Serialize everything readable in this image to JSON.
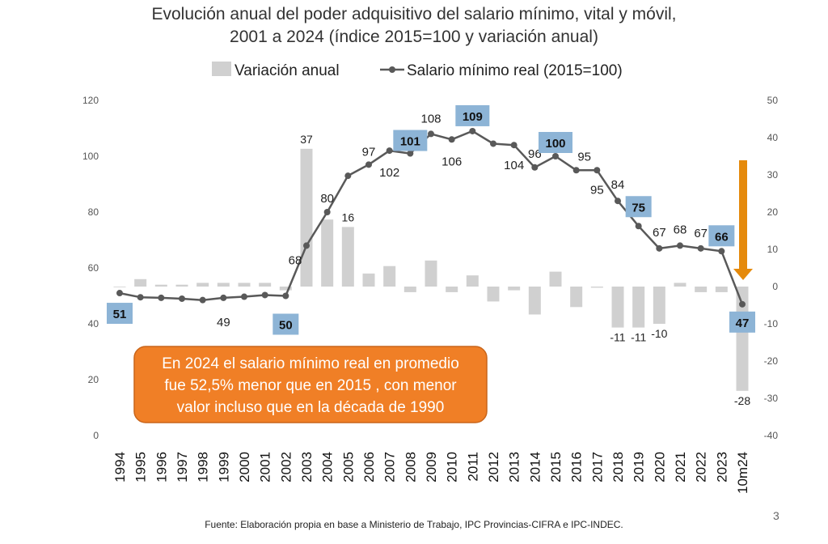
{
  "title_line1": "Evolución anual del poder adquisitivo del salario mínimo, vital y móvil,",
  "title_line2": "2001 a 2024 (índice 2015=100 y variación anual)",
  "source": "Fuente: Elaboración propia en base a Ministerio de Trabajo, IPC Provincias-CIFRA e IPC-INDEC.",
  "page_number": "3",
  "callout": {
    "lines": [
      "En 2024 el salario mínimo real en promedio",
      "fue 52,5% menor que en 2015 , con menor",
      "valor incluso que en la década de 1990"
    ],
    "color": "#F07F26"
  },
  "colors": {
    "bars": "#D0D0D0",
    "line": "#595959",
    "highlight": "#8DB4D6",
    "arrow": "#E58A0C"
  },
  "chart_data": {
    "type": "bar+line",
    "categories": [
      "1994",
      "1995",
      "1996",
      "1997",
      "1998",
      "1999",
      "2000",
      "2001",
      "2002",
      "2003",
      "2004",
      "2005",
      "2006",
      "2007",
      "2008",
      "2009",
      "2010",
      "2011",
      "2012",
      "2013",
      "2014",
      "2015",
      "2016",
      "2017",
      "2018",
      "2019",
      "2020",
      "2021",
      "2022",
      "2023",
      "10m24"
    ],
    "series": [
      {
        "name": "Variación anual",
        "type": "bar",
        "axis": "right",
        "values": [
          0,
          2,
          0.5,
          0.5,
          1,
          1,
          1,
          1,
          -1,
          37,
          18,
          16,
          3.5,
          5.5,
          -1.5,
          7,
          -1.5,
          3,
          -4,
          -1,
          -7.5,
          4,
          -5.5,
          -0.3,
          -11,
          -11,
          -10,
          1,
          -1.5,
          -1.5,
          -28
        ]
      },
      {
        "name": "Salario mínimo real (2015=100)",
        "type": "line",
        "axis": "left",
        "values": [
          51,
          49.5,
          49.3,
          49,
          48.5,
          49.3,
          49.7,
          50.3,
          50,
          68,
          80,
          93,
          97,
          102,
          101,
          108,
          106,
          109,
          104.5,
          104,
          96,
          100,
          95,
          95,
          84,
          75,
          67,
          68,
          67,
          66,
          47
        ]
      }
    ],
    "line_labels": [
      {
        "i": 0,
        "text": "51",
        "highlight": true
      },
      {
        "i": 5,
        "text": "49",
        "highlight": false
      },
      {
        "i": 8,
        "text": "50",
        "highlight": true
      },
      {
        "i": 9,
        "text": "68",
        "highlight": false
      },
      {
        "i": 10,
        "text": "80",
        "highlight": false
      },
      {
        "i": 12,
        "text": "97",
        "highlight": false
      },
      {
        "i": 13,
        "text": "102",
        "highlight": false
      },
      {
        "i": 14,
        "text": "101",
        "highlight": true
      },
      {
        "i": 15,
        "text": "108",
        "highlight": false
      },
      {
        "i": 16,
        "text": "106",
        "highlight": false
      },
      {
        "i": 17,
        "text": "109",
        "highlight": true
      },
      {
        "i": 19,
        "text": "104",
        "highlight": false
      },
      {
        "i": 20,
        "text": "96",
        "highlight": false
      },
      {
        "i": 21,
        "text": "100",
        "highlight": true
      },
      {
        "i": 22,
        "text": "95",
        "highlight": false
      },
      {
        "i": 23,
        "text": "95",
        "highlight": false
      },
      {
        "i": 24,
        "text": "84",
        "highlight": false
      },
      {
        "i": 25,
        "text": "75",
        "highlight": true
      },
      {
        "i": 26,
        "text": "67",
        "highlight": false
      },
      {
        "i": 27,
        "text": "68",
        "highlight": false
      },
      {
        "i": 28,
        "text": "67",
        "highlight": false
      },
      {
        "i": 29,
        "text": "66",
        "highlight": true
      },
      {
        "i": 30,
        "text": "47",
        "highlight": true
      }
    ],
    "bar_labels": [
      {
        "i": 9,
        "text": "37"
      },
      {
        "i": 11,
        "text": "16"
      },
      {
        "i": 24,
        "text": "-11"
      },
      {
        "i": 25,
        "text": "-11"
      },
      {
        "i": 26,
        "text": "-10"
      },
      {
        "i": 30,
        "text": "-28"
      }
    ],
    "left_axis": {
      "min": 0,
      "max": 120,
      "ticks": [
        "0",
        "20",
        "40",
        "60",
        "80",
        "100",
        "120"
      ]
    },
    "right_axis": {
      "min": -40,
      "max": 50,
      "ticks": [
        "-40",
        "-30",
        "-20",
        "-10",
        "0",
        "10",
        "20",
        "30",
        "40",
        "50"
      ]
    },
    "legend_position": "top-center",
    "grid": false
  }
}
